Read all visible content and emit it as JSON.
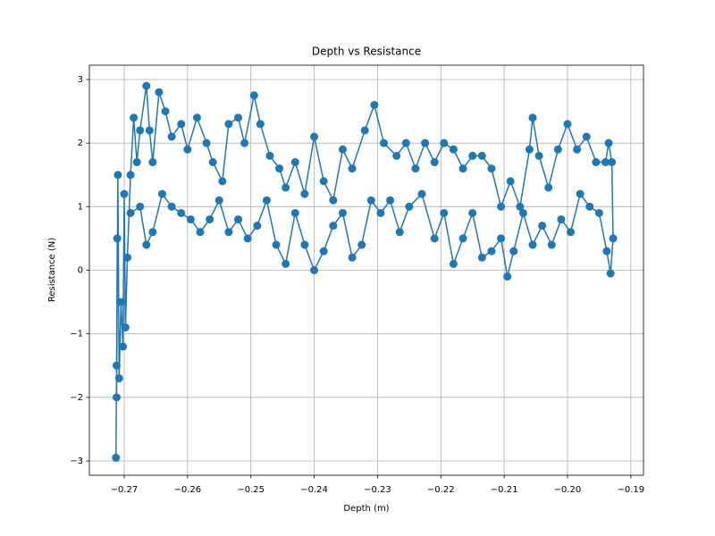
{
  "chart_data": {
    "type": "line",
    "title": "Depth vs Resistance",
    "x_label": "Depth (m)",
    "y_label": "Resistance (N)",
    "color": "#1f77b4",
    "grid": true,
    "marker": "circle",
    "x": [
      -0.2713,
      -0.2712,
      -0.2711,
      -0.2712,
      -0.271,
      -0.2708,
      -0.2705,
      -0.2702,
      -0.27,
      -0.2698,
      -0.2695,
      -0.269,
      -0.2685,
      -0.268,
      -0.2675,
      -0.2665,
      -0.266,
      -0.2655,
      -0.2645,
      -0.2635,
      -0.2625,
      -0.261,
      -0.26,
      -0.2585,
      -0.257,
      -0.256,
      -0.2545,
      -0.2535,
      -0.252,
      -0.251,
      -0.2495,
      -0.2485,
      -0.247,
      -0.2455,
      -0.2445,
      -0.243,
      -0.2415,
      -0.24,
      -0.2385,
      -0.237,
      -0.2355,
      -0.234,
      -0.232,
      -0.2305,
      -0.229,
      -0.227,
      -0.2255,
      -0.224,
      -0.2225,
      -0.221,
      -0.2195,
      -0.218,
      -0.2165,
      -0.215,
      -0.2135,
      -0.212,
      -0.2105,
      -0.209,
      -0.2075,
      -0.206,
      -0.2055,
      -0.2045,
      -0.203,
      -0.2015,
      -0.2,
      -0.1985,
      -0.197,
      -0.1955,
      -0.194,
      -0.1935,
      -0.193,
      -0.1928,
      -0.1932,
      -0.1938,
      -0.195,
      -0.1965,
      -0.198,
      -0.1995,
      -0.201,
      -0.2025,
      -0.204,
      -0.2055,
      -0.207,
      -0.2085,
      -0.2095,
      -0.2105,
      -0.212,
      -0.2135,
      -0.215,
      -0.2165,
      -0.218,
      -0.2195,
      -0.221,
      -0.223,
      -0.225,
      -0.2265,
      -0.228,
      -0.2295,
      -0.231,
      -0.2325,
      -0.234,
      -0.2355,
      -0.237,
      -0.2385,
      -0.24,
      -0.2415,
      -0.243,
      -0.2445,
      -0.246,
      -0.2475,
      -0.249,
      -0.2505,
      -0.252,
      -0.2535,
      -0.255,
      -0.2565,
      -0.258,
      -0.2595,
      -0.261,
      -0.2625,
      -0.264,
      -0.2655,
      -0.2665,
      -0.2675,
      -0.269
    ],
    "values": [
      -2.95,
      -1.5,
      0.5,
      -2.0,
      1.5,
      -1.7,
      -0.5,
      -1.2,
      1.2,
      -0.9,
      0.2,
      1.5,
      2.4,
      1.7,
      2.2,
      2.9,
      2.2,
      1.7,
      2.8,
      2.5,
      2.1,
      2.3,
      1.9,
      2.4,
      2.0,
      1.7,
      1.4,
      2.3,
      2.4,
      2.0,
      2.75,
      2.3,
      1.8,
      1.6,
      1.3,
      1.7,
      1.2,
      2.1,
      1.4,
      1.1,
      1.9,
      1.6,
      2.2,
      2.6,
      2.0,
      1.8,
      2.0,
      1.6,
      2.0,
      1.7,
      2.0,
      1.9,
      1.6,
      1.8,
      1.8,
      1.6,
      1.0,
      1.4,
      1.0,
      1.9,
      2.4,
      1.8,
      1.3,
      1.9,
      2.3,
      1.9,
      2.1,
      1.7,
      1.7,
      2.0,
      1.7,
      0.5,
      -0.05,
      0.3,
      0.9,
      1.0,
      1.2,
      0.6,
      0.8,
      0.4,
      0.7,
      0.4,
      0.9,
      0.3,
      -0.1,
      0.5,
      0.3,
      0.2,
      0.9,
      0.5,
      0.1,
      0.9,
      0.5,
      1.2,
      1.0,
      0.6,
      1.1,
      0.9,
      1.1,
      0.4,
      0.2,
      0.9,
      0.7,
      0.3,
      0.0,
      0.4,
      0.9,
      0.1,
      0.4,
      1.1,
      0.7,
      0.5,
      0.8,
      0.6,
      1.1,
      0.8,
      0.6,
      0.8,
      0.9,
      1.0,
      1.2,
      0.6,
      0.4,
      1.0,
      0.9
    ],
    "xlim": [
      -0.2755,
      -0.188
    ],
    "ylim": [
      -3.225,
      3.225
    ],
    "xticks": [
      {
        "value": -0.27,
        "label": "−0.27"
      },
      {
        "value": -0.26,
        "label": "−0.26"
      },
      {
        "value": -0.25,
        "label": "−0.25"
      },
      {
        "value": -0.24,
        "label": "−0.24"
      },
      {
        "value": -0.23,
        "label": "−0.23"
      },
      {
        "value": -0.22,
        "label": "−0.22"
      },
      {
        "value": -0.21,
        "label": "−0.21"
      },
      {
        "value": -0.2,
        "label": "−0.20"
      },
      {
        "value": -0.19,
        "label": "−0.19"
      }
    ],
    "yticks": [
      {
        "value": -3,
        "label": "−3"
      },
      {
        "value": -2,
        "label": "−2"
      },
      {
        "value": -1,
        "label": "−1"
      },
      0,
      1,
      2,
      3
    ]
  }
}
